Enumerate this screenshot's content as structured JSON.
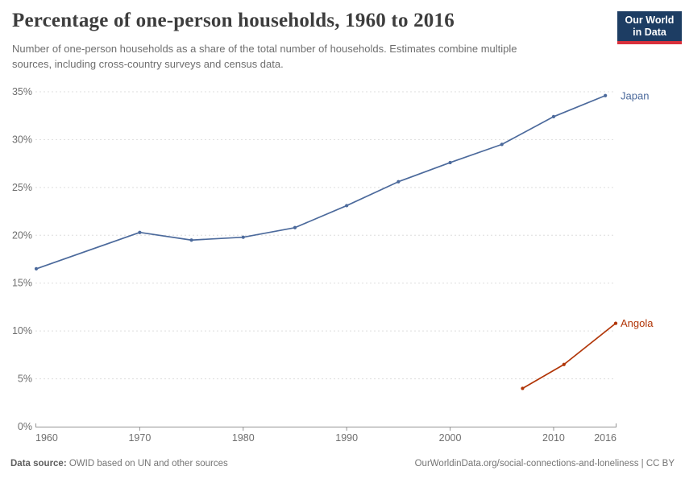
{
  "header": {
    "title": "Percentage of one-person households, 1960 to 2016",
    "subtitle": "Number of one-person households as a share of the total number of households. Estimates combine multiple sources, including cross-country surveys and census data.",
    "logo": {
      "line1": "Our World",
      "line2": "in Data"
    }
  },
  "colors": {
    "title": "#3d3d3d",
    "subtitle": "#6e6e6e",
    "grid": "#dddddd",
    "axis": "#949494",
    "tick_label": "#6e6e6e",
    "logo_bg": "#1d3d63",
    "logo_stripe": "#d9303c",
    "japan": "#4C6A9C",
    "angola": "#B13507"
  },
  "chart_data": {
    "type": "line",
    "title": "Percentage of one-person households, 1960 to 2016",
    "subtitle": "Number of one-person households as a share of the total number of households. Estimates combine multiple sources, including cross-country surveys and census data.",
    "xlabel": "",
    "ylabel": "",
    "xlim": [
      1960,
      2016
    ],
    "ylim": [
      0,
      35
    ],
    "xticks": [
      1960,
      1970,
      1980,
      1990,
      2000,
      2010,
      2016
    ],
    "yticks": [
      0,
      5,
      10,
      15,
      20,
      25,
      30,
      35
    ],
    "ytick_suffix": "%",
    "grid": true,
    "legend_position": "end-of-line",
    "series": [
      {
        "name": "Japan",
        "color": "#4C6A9C",
        "points": [
          [
            1960,
            16.5
          ],
          [
            1970,
            20.3
          ],
          [
            1975,
            19.5
          ],
          [
            1980,
            19.8
          ],
          [
            1985,
            20.8
          ],
          [
            1990,
            23.1
          ],
          [
            1995,
            25.6
          ],
          [
            2000,
            27.6
          ],
          [
            2005,
            29.5
          ],
          [
            2010,
            32.4
          ],
          [
            2015,
            34.6
          ]
        ]
      },
      {
        "name": "Angola",
        "color": "#B13507",
        "points": [
          [
            2007,
            4.0
          ],
          [
            2011,
            6.5
          ],
          [
            2016,
            10.8
          ]
        ]
      }
    ]
  },
  "footer": {
    "source_label": "Data source:",
    "source_text": " OWID based on UN and other sources",
    "url": "OurWorldinData.org/social-connections-and-loneliness",
    "separator": " | ",
    "license": "CC BY"
  }
}
